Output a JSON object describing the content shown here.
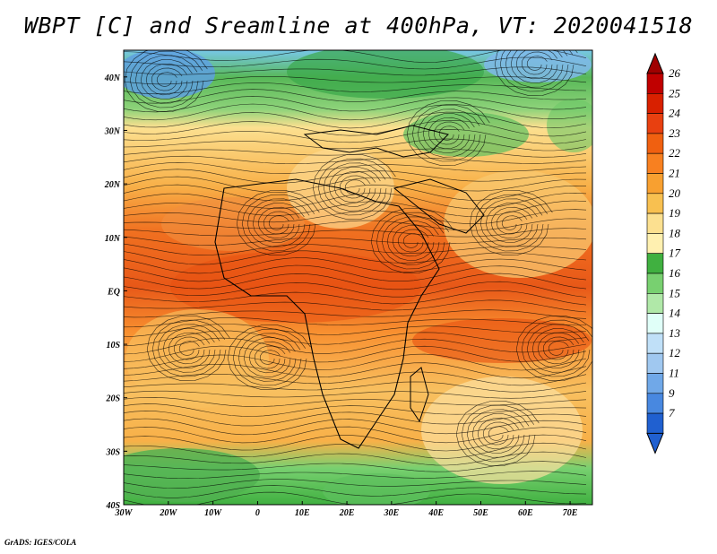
{
  "title": "WBPT [C] and Sreamline at 400hPa, VT: 2020041518",
  "credit": "GrADS: IGES/COLA",
  "map": {
    "lat_labels": [
      "40N",
      "30N",
      "20N",
      "10N",
      "EQ",
      "10S",
      "20S",
      "30S",
      "40S"
    ],
    "lon_labels": [
      "30W",
      "20W",
      "10W",
      "0",
      "10E",
      "20E",
      "30E",
      "40E",
      "50E",
      "60E",
      "70E"
    ],
    "lat_values": [
      40,
      30,
      20,
      10,
      0,
      -10,
      -20,
      -30,
      -40
    ],
    "lon_values": [
      -30,
      -20,
      -10,
      0,
      10,
      20,
      30,
      40,
      50,
      60,
      70
    ],
    "lat_range": [
      -40,
      45
    ],
    "lon_range": [
      -30,
      75
    ]
  },
  "colorbar": {
    "labels": [
      "26",
      "25",
      "24",
      "23",
      "22",
      "21",
      "20",
      "19",
      "18",
      "17",
      "16",
      "15",
      "14",
      "13",
      "12",
      "11",
      "9",
      "7"
    ],
    "colors": [
      "#c00000",
      "#d82000",
      "#e84010",
      "#f06010",
      "#f88020",
      "#f8a030",
      "#f8c050",
      "#fce090",
      "#fff0b0",
      "#40b040",
      "#78d070",
      "#b0e8a8",
      "#e0fff8",
      "#c0e0f8",
      "#a0c8f0",
      "#70a8e8",
      "#4888e0",
      "#2060d0"
    ],
    "top_arrow_color": "#a00000",
    "bottom_arrow_color": "#2060d0"
  }
}
